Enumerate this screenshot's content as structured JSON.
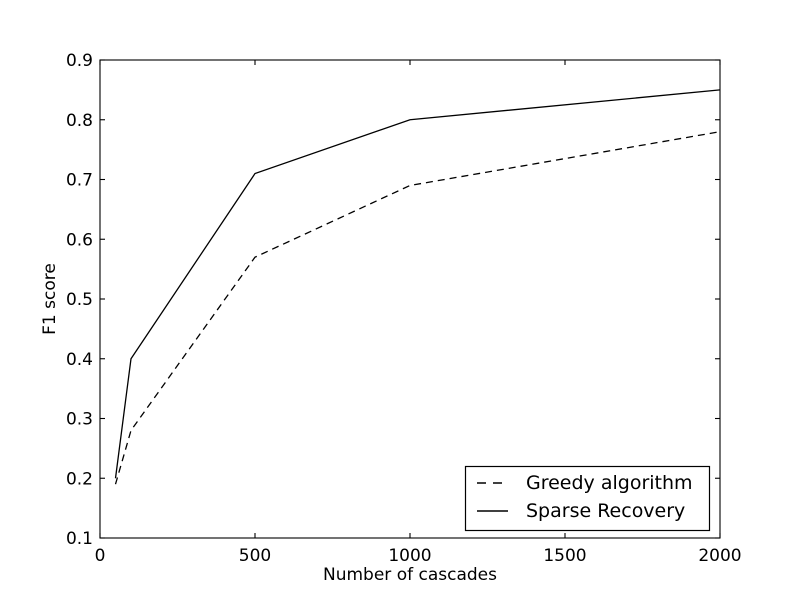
{
  "figure": {
    "background": "#ffffff",
    "foreground": "#000000"
  },
  "chart_data": {
    "type": "line",
    "title": "",
    "xlabel": "Number of cascades",
    "ylabel": "F1 score",
    "xlim": [
      0,
      2000
    ],
    "ylim": [
      0.1,
      0.9
    ],
    "x_ticks": [
      0,
      500,
      1000,
      1500,
      2000
    ],
    "y_ticks": [
      0.1,
      0.2,
      0.3,
      0.4,
      0.5,
      0.6,
      0.7,
      0.8,
      0.9
    ],
    "grid": false,
    "x": [
      50,
      100,
      500,
      1000,
      2000
    ],
    "series": [
      {
        "name": "Greedy algorithm",
        "style": "dashed",
        "color": "#000000",
        "values": [
          0.19,
          0.28,
          0.57,
          0.69,
          0.78
        ]
      },
      {
        "name": "Sparse Recovery",
        "style": "solid",
        "color": "#000000",
        "values": [
          0.2,
          0.4,
          0.71,
          0.8,
          0.85
        ]
      }
    ],
    "legend": {
      "position": "lower right",
      "entries": [
        "Greedy algorithm",
        "Sparse Recovery"
      ]
    }
  }
}
